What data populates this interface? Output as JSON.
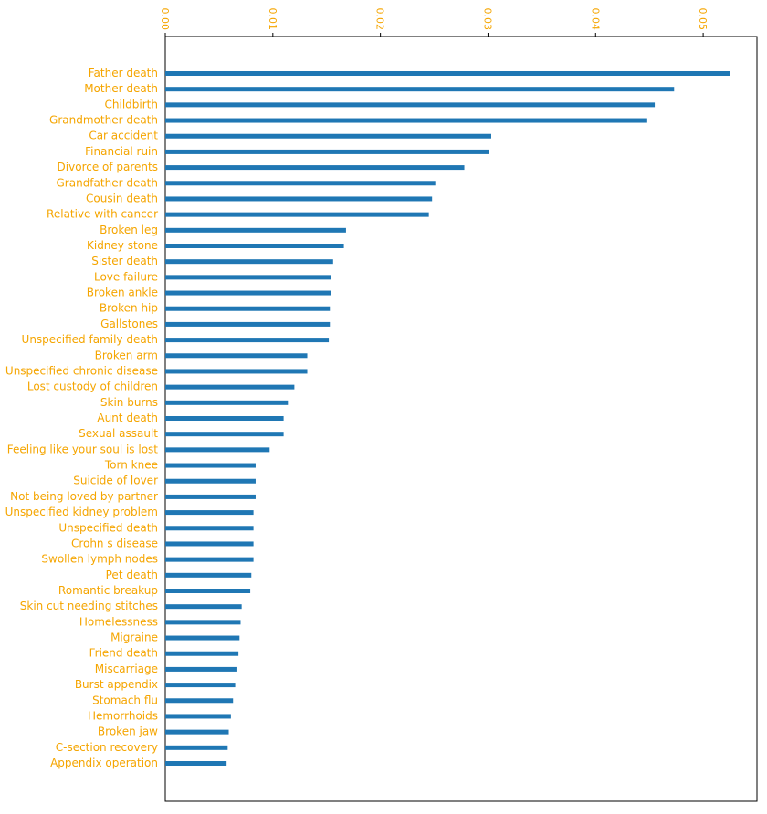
{
  "colors": {
    "bar": "#1f77b4",
    "label": "#f5a500",
    "axis": "#000000",
    "background": "#ffffff"
  },
  "chart_data": {
    "type": "bar",
    "orientation": "horizontal",
    "title": "",
    "xlabel": "",
    "ylabel": "",
    "xlim": [
      0.0,
      0.055
    ],
    "x_ticks": [
      "0.00",
      "0.01",
      "0.02",
      "0.03",
      "0.04",
      "0.05"
    ],
    "x_tick_values": [
      0.0,
      0.01,
      0.02,
      0.03,
      0.04,
      0.05
    ],
    "x_axis_position": "top",
    "grid": false,
    "legend": "none",
    "categories": [
      "Father death",
      "Mother death",
      "Childbirth",
      "Grandmother death",
      "Car accident",
      "Financial ruin",
      "Divorce of parents",
      "Grandfather death",
      "Cousin death",
      "Relative with cancer",
      "Broken leg",
      "Kidney stone",
      "Sister death",
      "Love failure",
      "Broken ankle",
      "Broken hip",
      "Gallstones",
      "Unspecified family death",
      "Broken arm",
      "Unspecified chronic disease",
      "Lost custody of children",
      "Skin burns",
      "Aunt death",
      "Sexual assault",
      "Feeling like your soul is lost",
      "Torn knee",
      "Suicide of lover",
      "Not being loved by partner",
      "Unspecified kidney problem",
      "Unspecified death",
      "Crohn s disease",
      "Swollen lymph nodes",
      "Pet death",
      "Romantic breakup",
      "Skin cut needing stitches",
      "Homelessness",
      "Migraine",
      "Friend death",
      "Miscarriage",
      "Burst appendix",
      "Stomach flu",
      "Hemorrhoids",
      "Broken jaw",
      "C-section recovery",
      "Appendix operation"
    ],
    "values": [
      0.0525,
      0.0473,
      0.0455,
      0.0448,
      0.0303,
      0.0301,
      0.0278,
      0.0251,
      0.0248,
      0.0245,
      0.0168,
      0.0166,
      0.0156,
      0.0154,
      0.0154,
      0.0153,
      0.0153,
      0.0152,
      0.0132,
      0.0132,
      0.012,
      0.0114,
      0.011,
      0.011,
      0.0097,
      0.0084,
      0.0084,
      0.0084,
      0.0082,
      0.0082,
      0.0082,
      0.0082,
      0.008,
      0.0079,
      0.0071,
      0.007,
      0.0069,
      0.0068,
      0.0067,
      0.0065,
      0.0063,
      0.0061,
      0.0059,
      0.0058,
      0.0057
    ]
  }
}
